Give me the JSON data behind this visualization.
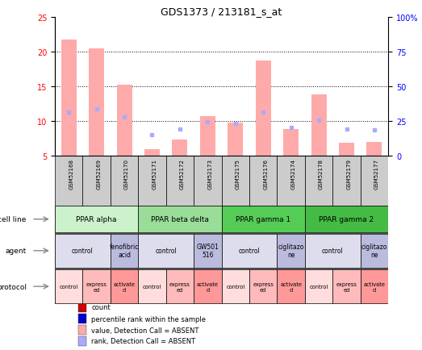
{
  "title": "GDS1373 / 213181_s_at",
  "samples": [
    "GSM52168",
    "GSM52169",
    "GSM52170",
    "GSM52171",
    "GSM52172",
    "GSM52173",
    "GSM52175",
    "GSM52176",
    "GSM52174",
    "GSM52178",
    "GSM52179",
    "GSM52177"
  ],
  "bar_values": [
    21.7,
    20.5,
    15.2,
    6.0,
    7.3,
    10.7,
    9.8,
    18.7,
    8.9,
    13.8,
    6.9,
    7.0
  ],
  "rank_values": [
    11.3,
    11.7,
    10.6,
    8.0,
    8.8,
    9.9,
    9.7,
    11.3,
    9.1,
    10.1,
    8.8,
    8.7
  ],
  "bar_color": "#ffaaaa",
  "rank_color": "#aaaaff",
  "ylim_left": [
    5,
    25
  ],
  "ylim_right": [
    0,
    100
  ],
  "yticks_left": [
    5,
    10,
    15,
    20,
    25
  ],
  "yticks_right": [
    0,
    25,
    50,
    75,
    100
  ],
  "ytick_labels_right": [
    "0",
    "25",
    "50",
    "75",
    "100%"
  ],
  "cell_lines": [
    {
      "label": "PPAR alpha",
      "span": [
        0,
        3
      ],
      "color": "#ccf2cc"
    },
    {
      "label": "PPAR beta delta",
      "span": [
        3,
        6
      ],
      "color": "#99dd99"
    },
    {
      "label": "PPAR gamma 1",
      "span": [
        6,
        9
      ],
      "color": "#55cc55"
    },
    {
      "label": "PPAR gamma 2",
      "span": [
        9,
        12
      ],
      "color": "#44bb44"
    }
  ],
  "agents": [
    {
      "label": "control",
      "span": [
        0,
        2
      ],
      "color": "#ddddee"
    },
    {
      "label": "fenofibric\nacid",
      "span": [
        2,
        3
      ],
      "color": "#bbbbdd"
    },
    {
      "label": "control",
      "span": [
        3,
        5
      ],
      "color": "#ddddee"
    },
    {
      "label": "GW501\n516",
      "span": [
        5,
        6
      ],
      "color": "#bbbbdd"
    },
    {
      "label": "control",
      "span": [
        6,
        8
      ],
      "color": "#ddddee"
    },
    {
      "label": "ciglitazo\nne",
      "span": [
        8,
        9
      ],
      "color": "#bbbbdd"
    },
    {
      "label": "control",
      "span": [
        9,
        11
      ],
      "color": "#ddddee"
    },
    {
      "label": "ciglitazo\nne",
      "span": [
        11,
        12
      ],
      "color": "#bbbbdd"
    }
  ],
  "protocols": [
    {
      "label": "control",
      "span": [
        0,
        1
      ],
      "color": "#ffdddd"
    },
    {
      "label": "express\ned",
      "span": [
        1,
        2
      ],
      "color": "#ffbbbb"
    },
    {
      "label": "activate\nd",
      "span": [
        2,
        3
      ],
      "color": "#ff9999"
    },
    {
      "label": "control",
      "span": [
        3,
        4
      ],
      "color": "#ffdddd"
    },
    {
      "label": "express\ned",
      "span": [
        4,
        5
      ],
      "color": "#ffbbbb"
    },
    {
      "label": "activate\nd",
      "span": [
        5,
        6
      ],
      "color": "#ff9999"
    },
    {
      "label": "control",
      "span": [
        6,
        7
      ],
      "color": "#ffdddd"
    },
    {
      "label": "express\ned",
      "span": [
        7,
        8
      ],
      "color": "#ffbbbb"
    },
    {
      "label": "activate\nd",
      "span": [
        8,
        9
      ],
      "color": "#ff9999"
    },
    {
      "label": "control",
      "span": [
        9,
        10
      ],
      "color": "#ffdddd"
    },
    {
      "label": "express\ned",
      "span": [
        10,
        11
      ],
      "color": "#ffbbbb"
    },
    {
      "label": "activate\nd",
      "span": [
        11,
        12
      ],
      "color": "#ff9999"
    }
  ],
  "row_labels": [
    "cell line",
    "agent",
    "protocol"
  ],
  "legend_items": [
    {
      "label": "count",
      "color": "#cc0000"
    },
    {
      "label": "percentile rank within the sample",
      "color": "#0000cc"
    },
    {
      "label": "value, Detection Call = ABSENT",
      "color": "#ffaaaa"
    },
    {
      "label": "rank, Detection Call = ABSENT",
      "color": "#aaaaff"
    }
  ],
  "sample_row_color": "#cccccc",
  "chart_bg": "#ffffff",
  "border_color": "#000000"
}
